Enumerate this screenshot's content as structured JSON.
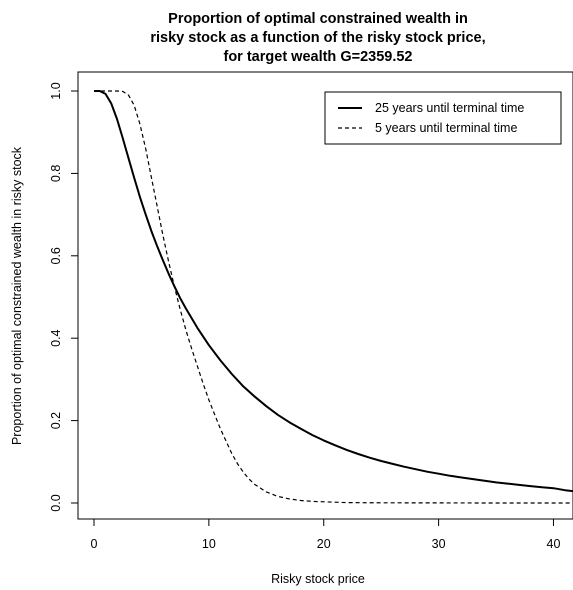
{
  "chart_data": {
    "type": "line",
    "title": [
      "Proportion of optimal constrained wealth in",
      "risky stock as a function of the risky stock price,",
      "for target wealth G=2359.52"
    ],
    "xlabel": "Risky stock price",
    "ylabel": "Proportion of optimal constrained wealth in risky stock",
    "xlim": [
      0,
      41.7
    ],
    "ylim": [
      0,
      1
    ],
    "x_ticks": [
      0,
      10,
      20,
      30,
      40
    ],
    "y_ticks": [
      "0.0",
      "0.2",
      "0.4",
      "0.6",
      "0.8",
      "1.0"
    ],
    "legend_position": "top-right",
    "series": [
      {
        "name": "25 years until terminal time",
        "line_style": "solid",
        "x": [
          0,
          0.5,
          1,
          1.5,
          2,
          2.5,
          3,
          3.5,
          4,
          4.5,
          5,
          5.5,
          6,
          6.5,
          7,
          7.5,
          8,
          9,
          10,
          11,
          12,
          13,
          14,
          15,
          16,
          17,
          18,
          19,
          20,
          21,
          22,
          23,
          24,
          25,
          26,
          27,
          28,
          29,
          30,
          31,
          32,
          33,
          34,
          35,
          36,
          37,
          38,
          39,
          40,
          41,
          41.7
        ],
        "y": [
          1.0,
          1.0,
          0.993,
          0.97,
          0.932,
          0.886,
          0.837,
          0.789,
          0.743,
          0.7,
          0.66,
          0.623,
          0.589,
          0.556,
          0.526,
          0.497,
          0.472,
          0.425,
          0.383,
          0.346,
          0.313,
          0.283,
          0.258,
          0.235,
          0.214,
          0.196,
          0.18,
          0.165,
          0.152,
          0.14,
          0.129,
          0.119,
          0.11,
          0.102,
          0.095,
          0.088,
          0.082,
          0.076,
          0.071,
          0.066,
          0.062,
          0.058,
          0.054,
          0.05,
          0.047,
          0.044,
          0.041,
          0.038,
          0.036,
          0.031,
          0.029
        ]
      },
      {
        "name": "5 years until terminal time",
        "line_style": "dashed",
        "x": [
          0,
          1,
          2,
          2.5,
          3,
          3.5,
          4,
          4.5,
          5,
          5.5,
          6,
          6.5,
          7,
          7.5,
          8,
          8.5,
          9,
          9.5,
          10,
          10.5,
          11,
          11.5,
          12,
          12.5,
          13,
          13.5,
          14,
          15,
          16,
          17,
          18,
          19,
          20,
          22,
          25,
          30,
          35,
          41.7
        ],
        "y": [
          1.0,
          1.0,
          1.0,
          0.999,
          0.99,
          0.965,
          0.92,
          0.86,
          0.79,
          0.72,
          0.65,
          0.585,
          0.525,
          0.47,
          0.42,
          0.375,
          0.332,
          0.29,
          0.25,
          0.215,
          0.18,
          0.15,
          0.12,
          0.095,
          0.075,
          0.058,
          0.045,
          0.027,
          0.016,
          0.01,
          0.006,
          0.004,
          0.003,
          0.001,
          0.0005,
          0.0002,
          0.0001,
          0.0
        ]
      }
    ]
  }
}
